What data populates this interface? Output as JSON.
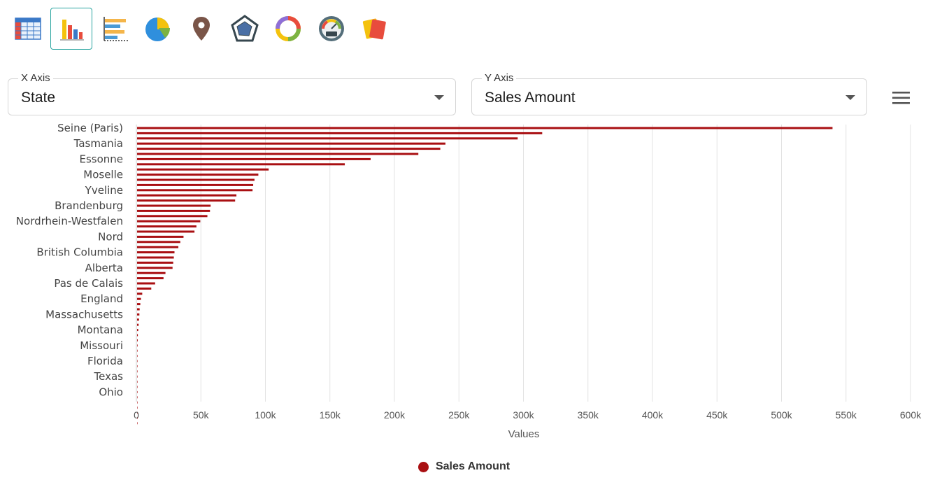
{
  "toolbar": {
    "items": [
      {
        "icon": "table-icon",
        "active": false
      },
      {
        "icon": "bar-chart-icon",
        "active": true
      },
      {
        "icon": "horizontal-bar-chart-icon",
        "active": false
      },
      {
        "icon": "pie-chart-icon",
        "active": false
      },
      {
        "icon": "map-pin-icon",
        "active": false
      },
      {
        "icon": "radar-chart-icon",
        "active": false
      },
      {
        "icon": "donut-chart-icon",
        "active": false
      },
      {
        "icon": "kpi-gauge-icon",
        "active": false
      },
      {
        "icon": "cards-icon",
        "active": false
      }
    ]
  },
  "x_axis_select": {
    "label": "X Axis",
    "value": "State"
  },
  "y_axis_select": {
    "label": "Y Axis",
    "value": "Sales Amount"
  },
  "menu": {
    "icon": "hamburger-menu-icon"
  },
  "colors": {
    "bar": "#a90f12",
    "accent": "#2aa5a0",
    "grid": "#e3e3e3"
  },
  "chart_data": {
    "type": "bar",
    "orientation": "horizontal",
    "xlabel": "Values",
    "xlim": [
      0,
      600000
    ],
    "x_ticks": [
      0,
      50000,
      100000,
      150000,
      200000,
      250000,
      300000,
      350000,
      400000,
      450000,
      500000,
      550000,
      600000
    ],
    "x_tick_labels": [
      "0",
      "50k",
      "100k",
      "150k",
      "200k",
      "250k",
      "300k",
      "350k",
      "400k",
      "450k",
      "500k",
      "550k",
      "600k"
    ],
    "grid": "vertical",
    "legend_position": "bottom-center",
    "category_count": 58,
    "visible_category_labels": [
      {
        "index": 0,
        "label": "Seine (Paris)"
      },
      {
        "index": 3,
        "label": "Tasmania"
      },
      {
        "index": 6,
        "label": "Essonne"
      },
      {
        "index": 9,
        "label": "Moselle"
      },
      {
        "index": 12,
        "label": "Yveline"
      },
      {
        "index": 15,
        "label": "Brandenburg"
      },
      {
        "index": 18,
        "label": "Nordrhein-Westfalen"
      },
      {
        "index": 21,
        "label": "Nord"
      },
      {
        "index": 24,
        "label": "British Columbia"
      },
      {
        "index": 27,
        "label": "Alberta"
      },
      {
        "index": 30,
        "label": "Pas de Calais"
      },
      {
        "index": 33,
        "label": "England"
      },
      {
        "index": 36,
        "label": "Massachusetts"
      },
      {
        "index": 39,
        "label": "Montana"
      },
      {
        "index": 42,
        "label": "Missouri"
      },
      {
        "index": 45,
        "label": "Florida"
      },
      {
        "index": 48,
        "label": "Texas"
      },
      {
        "index": 51,
        "label": "Ohio"
      }
    ],
    "series": [
      {
        "name": "Sales Amount",
        "values": [
          539000,
          314000,
          295000,
          239000,
          235000,
          218000,
          181000,
          161000,
          102000,
          94000,
          91000,
          90000,
          89500,
          77000,
          76000,
          57000,
          56500,
          54500,
          49000,
          46000,
          44500,
          36000,
          33500,
          32000,
          29000,
          28500,
          28000,
          27500,
          22000,
          20500,
          14000,
          11000,
          4000,
          3000,
          2500,
          2000,
          1800,
          1500,
          1200,
          900,
          600,
          500,
          400,
          350,
          300,
          250,
          200,
          180,
          160,
          140,
          120,
          100,
          80,
          60,
          50,
          40,
          30,
          20
        ]
      }
    ]
  }
}
